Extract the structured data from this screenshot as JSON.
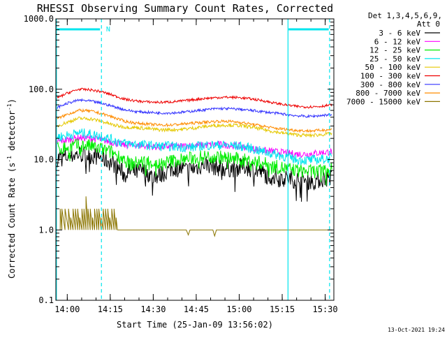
{
  "chart_data": {
    "type": "line",
    "title": "RHESSI Observing Summary Count Rates, Corrected",
    "xlabel": "Start Time (25-Jan-09 13:56:02)",
    "ylabel": "Corrected Count Rate (s",
    "ylabel_unit": "detector",
    "ylabel_sup": "-1",
    "y_scale": "log",
    "ylim": [
      0.1,
      1000
    ],
    "xlim_minutes": [
      0,
      97
    ],
    "x_ticks": [
      {
        "label": "14:00",
        "minute": 3.97
      },
      {
        "label": "14:15",
        "minute": 18.97
      },
      {
        "label": "14:30",
        "minute": 33.97
      },
      {
        "label": "14:45",
        "minute": 48.97
      },
      {
        "label": "15:00",
        "minute": 63.97
      },
      {
        "label": "15:15",
        "minute": 78.97
      },
      {
        "label": "15:30",
        "minute": 93.97
      }
    ],
    "y_ticks": [
      {
        "label": "0.1",
        "value": 0.1
      },
      {
        "label": "1.0",
        "value": 1
      },
      {
        "label": "10.0",
        "value": 10
      },
      {
        "label": "100.0",
        "value": 100
      },
      {
        "label": "1000.0",
        "value": 1000
      }
    ],
    "legend": {
      "position": "right",
      "header": [
        "Det 1,3,4,5,6,9,",
        "Att 0"
      ]
    },
    "annotations": {
      "timestamp": "13-Oct-2021 19:24",
      "night_label": "N",
      "saa_color": "#00e5ee",
      "night_solid_lines_min": [
        0.2,
        81.0
      ],
      "night_dashed_lines_min": [
        15.9,
        95.5
      ],
      "bars_at_top": [
        [
          0.4,
          15.4
        ],
        [
          81.2,
          95.2
        ]
      ]
    },
    "series": [
      {
        "name": "3 - 6 keV",
        "color": "#000000",
        "noise": 0.13,
        "points": [
          [
            0.5,
            10.5
          ],
          [
            4,
            11
          ],
          [
            8,
            12
          ],
          [
            12,
            11.5
          ],
          [
            15,
            11
          ],
          [
            17,
            10
          ],
          [
            20,
            8.8
          ],
          [
            22,
            7.5
          ],
          [
            24,
            6
          ],
          [
            26,
            6.8
          ],
          [
            28,
            6.5
          ],
          [
            30,
            7
          ],
          [
            32,
            6.5
          ],
          [
            34,
            5.5
          ],
          [
            36,
            6
          ],
          [
            38,
            6.5
          ],
          [
            40,
            7.5
          ],
          [
            43,
            7.5
          ],
          [
            46,
            7
          ],
          [
            50,
            8
          ],
          [
            52,
            9
          ],
          [
            55,
            8
          ],
          [
            58,
            7.5
          ],
          [
            62,
            7.5
          ],
          [
            66,
            8
          ],
          [
            70,
            7
          ],
          [
            74,
            6
          ],
          [
            78,
            5.5
          ],
          [
            82,
            5.3
          ],
          [
            86,
            5.1
          ],
          [
            90,
            5
          ],
          [
            94,
            5.4
          ],
          [
            96.5,
            5.6
          ]
        ]
      },
      {
        "name": "6 - 12 keV",
        "color": "#ff00ff",
        "noise": 0.05,
        "points": [
          [
            0.5,
            18
          ],
          [
            4,
            19
          ],
          [
            8,
            20.5
          ],
          [
            12,
            20
          ],
          [
            16,
            19
          ],
          [
            20,
            17.5
          ],
          [
            24,
            16
          ],
          [
            28,
            16
          ],
          [
            32,
            15.5
          ],
          [
            36,
            15
          ],
          [
            40,
            15.5
          ],
          [
            44,
            15.5
          ],
          [
            48,
            16
          ],
          [
            52,
            16
          ],
          [
            56,
            16.5
          ],
          [
            60,
            16
          ],
          [
            64,
            15.5
          ],
          [
            68,
            14.5
          ],
          [
            72,
            13.5
          ],
          [
            76,
            13
          ],
          [
            80,
            12.5
          ],
          [
            84,
            12
          ],
          [
            88,
            12
          ],
          [
            92,
            12.5
          ],
          [
            96.5,
            13
          ]
        ]
      },
      {
        "name": "12 - 25 keV",
        "color": "#00ee00",
        "noise": 0.1,
        "points": [
          [
            0.5,
            14
          ],
          [
            4,
            15
          ],
          [
            8,
            16
          ],
          [
            12,
            15.5
          ],
          [
            16,
            14
          ],
          [
            20,
            12.5
          ],
          [
            24,
            10
          ],
          [
            26,
            8.5
          ],
          [
            28,
            9
          ],
          [
            32,
            9.5
          ],
          [
            36,
            8.5
          ],
          [
            40,
            9.5
          ],
          [
            44,
            10
          ],
          [
            48,
            10.5
          ],
          [
            52,
            11
          ],
          [
            56,
            11
          ],
          [
            60,
            10.5
          ],
          [
            64,
            10
          ],
          [
            68,
            9.5
          ],
          [
            72,
            9
          ],
          [
            76,
            8
          ],
          [
            80,
            7.5
          ],
          [
            84,
            7
          ],
          [
            88,
            6.8
          ],
          [
            92,
            6.8
          ],
          [
            96.5,
            7.2
          ]
        ]
      },
      {
        "name": "25 - 50 keV",
        "color": "#00e5ee",
        "noise": 0.07,
        "points": [
          [
            0.5,
            21
          ],
          [
            4,
            22
          ],
          [
            8,
            24
          ],
          [
            12,
            23
          ],
          [
            16,
            21.5
          ],
          [
            20,
            19
          ],
          [
            24,
            17
          ],
          [
            28,
            16.5
          ],
          [
            32,
            16
          ],
          [
            36,
            15.5
          ],
          [
            40,
            15.5
          ],
          [
            44,
            15
          ],
          [
            48,
            15
          ],
          [
            52,
            16
          ],
          [
            56,
            16
          ],
          [
            60,
            16
          ],
          [
            64,
            15.5
          ],
          [
            68,
            14.5
          ],
          [
            72,
            13
          ],
          [
            76,
            12
          ],
          [
            80,
            11
          ],
          [
            84,
            10
          ],
          [
            88,
            9.8
          ],
          [
            92,
            10
          ],
          [
            96.5,
            10.5
          ]
        ]
      },
      {
        "name": "50 - 100 keV",
        "color": "#e5c800",
        "noise": 0.025,
        "points": [
          [
            0.5,
            30
          ],
          [
            4,
            34
          ],
          [
            8,
            38.5
          ],
          [
            12,
            38
          ],
          [
            16,
            35
          ],
          [
            20,
            31
          ],
          [
            24,
            29
          ],
          [
            28,
            28.5
          ],
          [
            32,
            27.5
          ],
          [
            36,
            26.5
          ],
          [
            40,
            26.5
          ],
          [
            44,
            27
          ],
          [
            48,
            28
          ],
          [
            52,
            29.5
          ],
          [
            56,
            30.5
          ],
          [
            60,
            31
          ],
          [
            64,
            30.5
          ],
          [
            68,
            29
          ],
          [
            72,
            27
          ],
          [
            76,
            25
          ],
          [
            80,
            23.5
          ],
          [
            84,
            22.5
          ],
          [
            88,
            22
          ],
          [
            92,
            22.5
          ],
          [
            96.5,
            23.5
          ]
        ]
      },
      {
        "name": "100 - 300 keV",
        "color": "#ee0000",
        "noise": 0.018,
        "points": [
          [
            0.5,
            75
          ],
          [
            4,
            88
          ],
          [
            8,
            100
          ],
          [
            12,
            98
          ],
          [
            16,
            92
          ],
          [
            20,
            82
          ],
          [
            24,
            72
          ],
          [
            28,
            68
          ],
          [
            32,
            66
          ],
          [
            36,
            65
          ],
          [
            40,
            66
          ],
          [
            44,
            68
          ],
          [
            48,
            71
          ],
          [
            52,
            74
          ],
          [
            56,
            76
          ],
          [
            60,
            77
          ],
          [
            64,
            76
          ],
          [
            68,
            73
          ],
          [
            72,
            69
          ],
          [
            76,
            64
          ],
          [
            80,
            60
          ],
          [
            84,
            57
          ],
          [
            88,
            56
          ],
          [
            92,
            57
          ],
          [
            96.5,
            60
          ]
        ]
      },
      {
        "name": "300 - 800 keV",
        "color": "#3333ff",
        "noise": 0.018,
        "points": [
          [
            0.5,
            55
          ],
          [
            4,
            63
          ],
          [
            8,
            70
          ],
          [
            12,
            68
          ],
          [
            16,
            63
          ],
          [
            20,
            57
          ],
          [
            24,
            51
          ],
          [
            28,
            48
          ],
          [
            32,
            47
          ],
          [
            36,
            46
          ],
          [
            40,
            46
          ],
          [
            44,
            47
          ],
          [
            48,
            49
          ],
          [
            52,
            51
          ],
          [
            56,
            53
          ],
          [
            60,
            53
          ],
          [
            64,
            52
          ],
          [
            68,
            50
          ],
          [
            72,
            48
          ],
          [
            76,
            46
          ],
          [
            80,
            44
          ],
          [
            84,
            42
          ],
          [
            88,
            41
          ],
          [
            92,
            42
          ],
          [
            96.5,
            44
          ]
        ]
      },
      {
        "name": "800 - 7000 keV",
        "color": "#ff8c00",
        "noise": 0.02,
        "points": [
          [
            0.5,
            38
          ],
          [
            4,
            44
          ],
          [
            8,
            50
          ],
          [
            12,
            49
          ],
          [
            16,
            45
          ],
          [
            20,
            40
          ],
          [
            24,
            35
          ],
          [
            28,
            33
          ],
          [
            32,
            32
          ],
          [
            36,
            31
          ],
          [
            40,
            31
          ],
          [
            44,
            32
          ],
          [
            48,
            33
          ],
          [
            52,
            34
          ],
          [
            56,
            35
          ],
          [
            60,
            35
          ],
          [
            64,
            34
          ],
          [
            68,
            32
          ],
          [
            72,
            30
          ],
          [
            76,
            28
          ],
          [
            80,
            27
          ],
          [
            84,
            26
          ],
          [
            88,
            25.5
          ],
          [
            92,
            26
          ],
          [
            96.5,
            27
          ]
        ]
      },
      {
        "name": "7000 - 15000 keV",
        "color": "#8b7500",
        "noise": 0,
        "points": [
          [
            1.5,
            1
          ],
          [
            1.5,
            2
          ],
          [
            2.1,
            1
          ],
          [
            2.1,
            2
          ],
          [
            3.2,
            1
          ],
          [
            3.2,
            2
          ],
          [
            4.4,
            1
          ],
          [
            4.4,
            2
          ],
          [
            5.2,
            1
          ],
          [
            5.2,
            1.5
          ],
          [
            6,
            1
          ],
          [
            6,
            2
          ],
          [
            6.8,
            1
          ],
          [
            6.8,
            2
          ],
          [
            7.6,
            1
          ],
          [
            7.6,
            2
          ],
          [
            8.3,
            1
          ],
          [
            8.3,
            1.5
          ],
          [
            9.1,
            1
          ],
          [
            9.1,
            2
          ],
          [
            9.8,
            1
          ],
          [
            9.8,
            2
          ],
          [
            10.5,
            1
          ],
          [
            10.5,
            3
          ],
          [
            11.2,
            1
          ],
          [
            11.2,
            2
          ],
          [
            12,
            1
          ],
          [
            12,
            2
          ],
          [
            12.8,
            1
          ],
          [
            12.8,
            1.5
          ],
          [
            13.5,
            1
          ],
          [
            13.5,
            2
          ],
          [
            14.3,
            1
          ],
          [
            14.3,
            2
          ],
          [
            15,
            1
          ],
          [
            15,
            2
          ],
          [
            15.8,
            1
          ],
          [
            15.8,
            1.5
          ],
          [
            16.5,
            1
          ],
          [
            16.5,
            2
          ],
          [
            17.3,
            1
          ],
          [
            17.3,
            2
          ],
          [
            18.1,
            1
          ],
          [
            18.1,
            2
          ],
          [
            18.8,
            1
          ],
          [
            18.8,
            1.5
          ],
          [
            19.5,
            1
          ],
          [
            19.5,
            2
          ],
          [
            20.3,
            1
          ],
          [
            20.3,
            2
          ],
          [
            21,
            1
          ],
          [
            21,
            1.5
          ],
          [
            21.5,
            1
          ],
          [
            22.1,
            1
          ],
          [
            23.5,
            1
          ],
          [
            45.5,
            1
          ],
          [
            46.2,
            0.85
          ],
          [
            46.8,
            1
          ],
          [
            49,
            1
          ],
          [
            54.8,
            1
          ],
          [
            55.4,
            0.82
          ],
          [
            56,
            1
          ],
          [
            58,
            1
          ],
          [
            70,
            1
          ],
          [
            95.6,
            1
          ],
          [
            96.5,
            1
          ]
        ]
      }
    ]
  }
}
